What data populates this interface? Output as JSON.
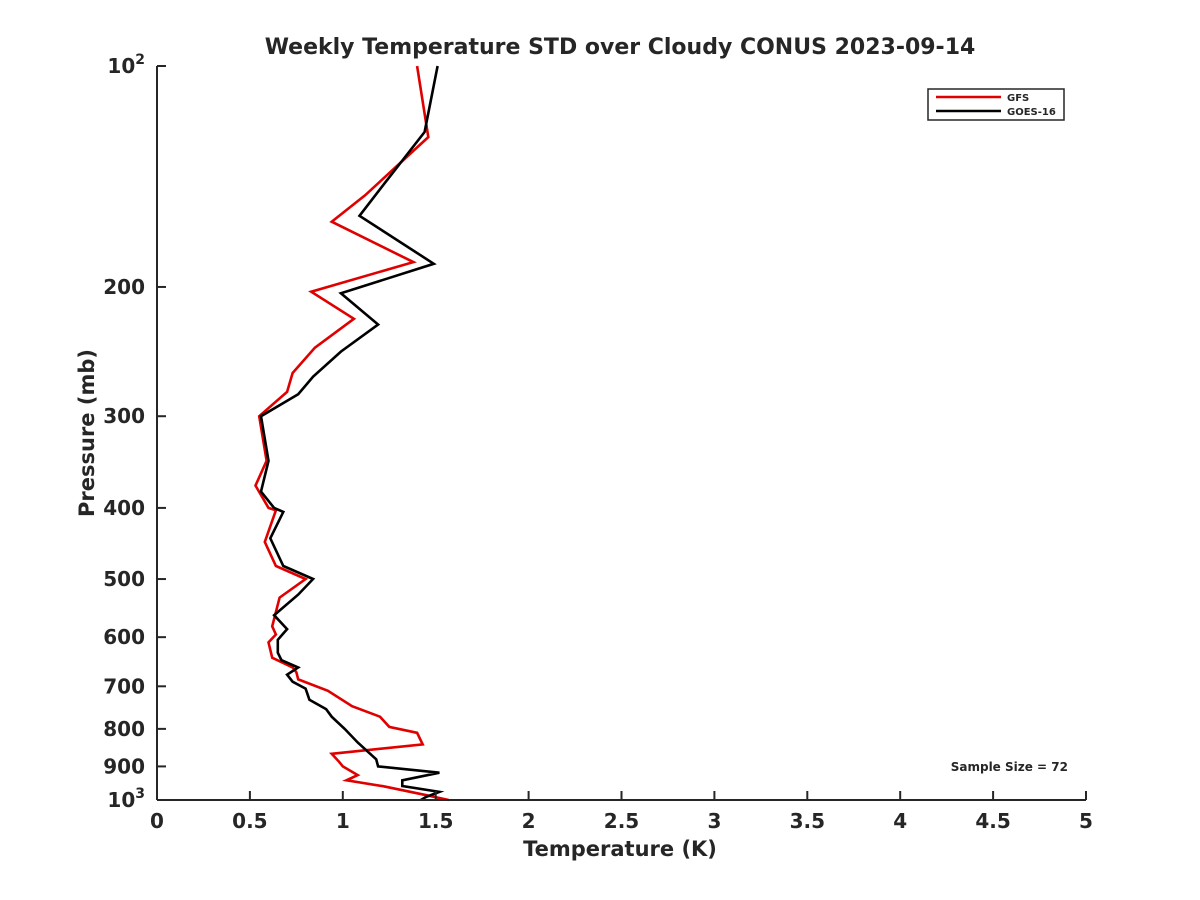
{
  "chart_data": {
    "type": "line",
    "title": "Weekly Temperature STD over Cloudy CONUS 2023-09-14",
    "xlabel": "Temperature (K)",
    "ylabel": "Pressure (mb)",
    "xlim": [
      0,
      5
    ],
    "ylim": [
      100,
      1000
    ],
    "y_scale": "log",
    "y_reversed": true,
    "x_ticks": [
      "0",
      "0.5",
      "1",
      "1.5",
      "2",
      "2.5",
      "3",
      "3.5",
      "4",
      "4.5",
      "5"
    ],
    "y_ticks": [
      {
        "value": 100,
        "label": "10",
        "sup": "2"
      },
      {
        "value": 200,
        "label": "200",
        "sup": ""
      },
      {
        "value": 300,
        "label": "300",
        "sup": ""
      },
      {
        "value": 400,
        "label": "400",
        "sup": ""
      },
      {
        "value": 500,
        "label": "500",
        "sup": ""
      },
      {
        "value": 600,
        "label": "600",
        "sup": ""
      },
      {
        "value": 700,
        "label": "700",
        "sup": ""
      },
      {
        "value": 800,
        "label": "800",
        "sup": ""
      },
      {
        "value": 900,
        "label": "900",
        "sup": ""
      },
      {
        "value": 1000,
        "label": "10",
        "sup": "3"
      }
    ],
    "grid": false,
    "legend_position": "top-right",
    "annotation": "Sample Size = 72",
    "series": [
      {
        "name": "GFS",
        "color": "#e00000",
        "points": [
          [
            1.4,
            100
          ],
          [
            1.46,
            125
          ],
          [
            1.12,
            150
          ],
          [
            0.94,
            163
          ],
          [
            1.38,
            185
          ],
          [
            0.83,
            203
          ],
          [
            1.06,
            221
          ],
          [
            0.85,
            242
          ],
          [
            0.73,
            262
          ],
          [
            0.7,
            278
          ],
          [
            0.55,
            300
          ],
          [
            0.59,
            345
          ],
          [
            0.53,
            373
          ],
          [
            0.6,
            400
          ],
          [
            0.64,
            403
          ],
          [
            0.58,
            445
          ],
          [
            0.64,
            480
          ],
          [
            0.8,
            500
          ],
          [
            0.66,
            530
          ],
          [
            0.62,
            580
          ],
          [
            0.64,
            595
          ],
          [
            0.6,
            610
          ],
          [
            0.62,
            640
          ],
          [
            0.73,
            660
          ],
          [
            0.75,
            670
          ],
          [
            0.76,
            685
          ],
          [
            0.92,
            710
          ],
          [
            1.05,
            745
          ],
          [
            1.2,
            770
          ],
          [
            1.25,
            795
          ],
          [
            1.4,
            810
          ],
          [
            1.43,
            840
          ],
          [
            0.94,
            865
          ],
          [
            0.98,
            887
          ],
          [
            1.0,
            900
          ],
          [
            1.08,
            925
          ],
          [
            1.02,
            940
          ],
          [
            1.22,
            958
          ],
          [
            1.45,
            985
          ],
          [
            1.57,
            1000
          ]
        ]
      },
      {
        "name": "GOES-16",
        "color": "#000000",
        "points": [
          [
            1.51,
            100
          ],
          [
            1.44,
            123
          ],
          [
            1.22,
            145
          ],
          [
            1.09,
            160
          ],
          [
            1.49,
            186
          ],
          [
            0.99,
            204
          ],
          [
            1.19,
            225
          ],
          [
            0.99,
            245
          ],
          [
            0.84,
            265
          ],
          [
            0.76,
            280
          ],
          [
            0.56,
            300
          ],
          [
            0.6,
            345
          ],
          [
            0.56,
            380
          ],
          [
            0.63,
            400
          ],
          [
            0.68,
            405
          ],
          [
            0.61,
            440
          ],
          [
            0.68,
            480
          ],
          [
            0.84,
            500
          ],
          [
            0.76,
            525
          ],
          [
            0.63,
            560
          ],
          [
            0.7,
            585
          ],
          [
            0.65,
            605
          ],
          [
            0.65,
            630
          ],
          [
            0.67,
            645
          ],
          [
            0.76,
            660
          ],
          [
            0.7,
            675
          ],
          [
            0.73,
            690
          ],
          [
            0.8,
            705
          ],
          [
            0.82,
            730
          ],
          [
            0.91,
            752
          ],
          [
            0.94,
            770
          ],
          [
            1.01,
            800
          ],
          [
            1.08,
            835
          ],
          [
            1.18,
            880
          ],
          [
            1.19,
            900
          ],
          [
            1.52,
            918
          ],
          [
            1.32,
            940
          ],
          [
            1.32,
            957
          ],
          [
            1.52,
            975
          ],
          [
            1.45,
            990
          ],
          [
            1.42,
            1000
          ]
        ]
      }
    ]
  }
}
